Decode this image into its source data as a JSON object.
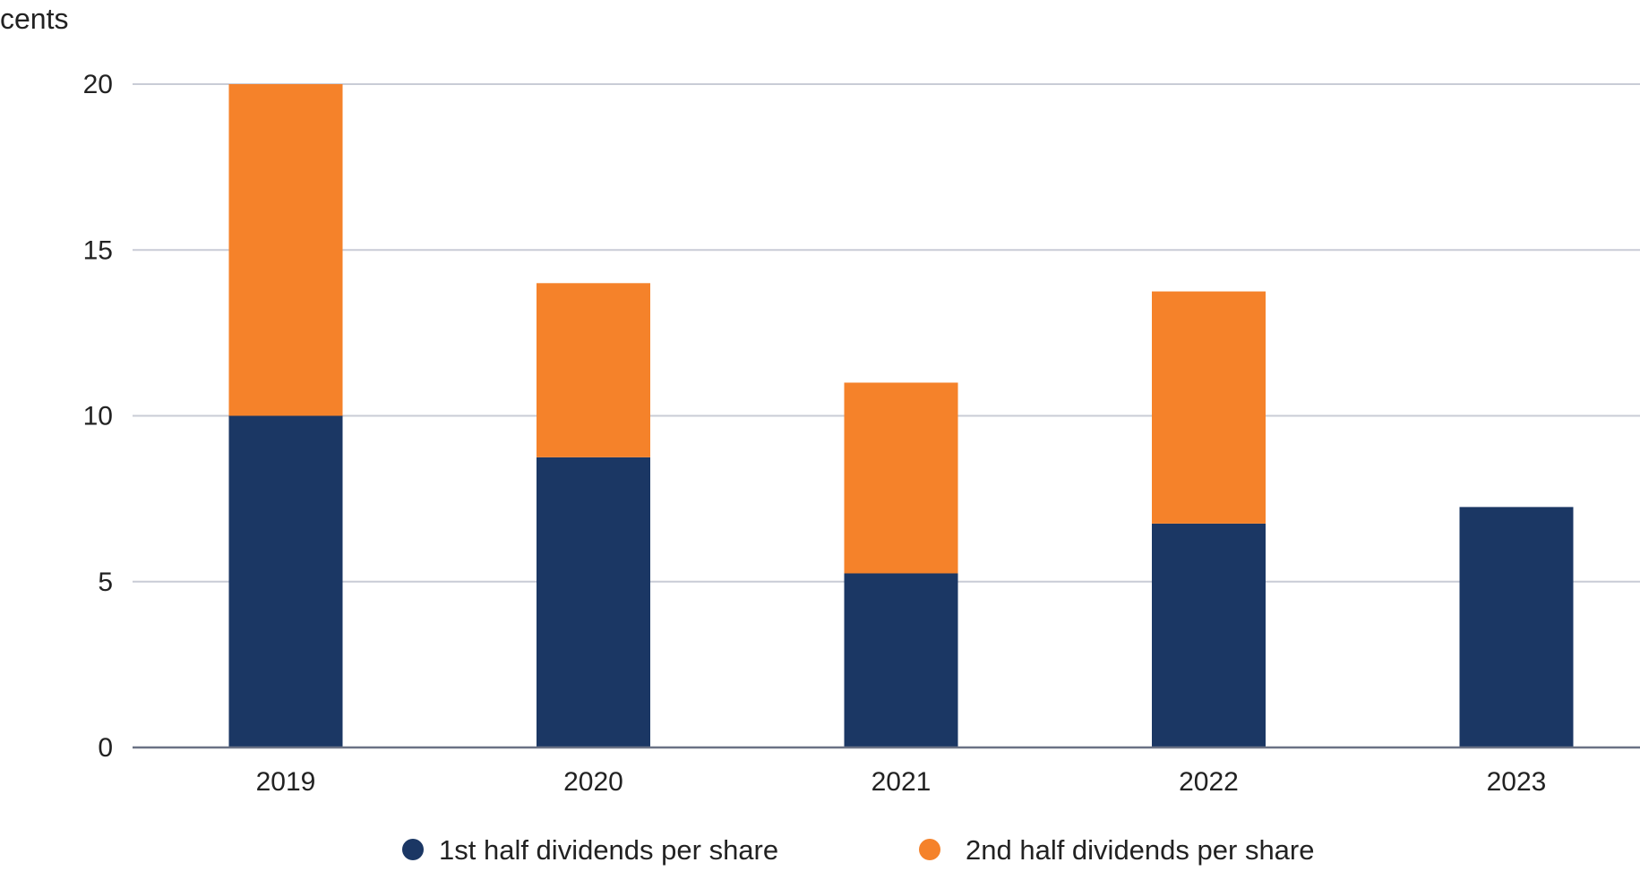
{
  "chart_data": {
    "type": "bar",
    "stacked": true,
    "ylabel": "cents",
    "categories": [
      "2019",
      "2020",
      "2021",
      "2022",
      "2023"
    ],
    "series": [
      {
        "name": "1st half dividends per share",
        "color": "#1b3764",
        "values": [
          10,
          8.75,
          5.25,
          6.75,
          7.25
        ]
      },
      {
        "name": "2nd half dividends per share",
        "color": "#f5822a",
        "values": [
          10,
          5.25,
          5.75,
          7.0,
          null
        ]
      }
    ],
    "ylim": [
      0,
      20
    ],
    "yticks": [
      0,
      5,
      10,
      15,
      20
    ],
    "grid": true,
    "legend_position": "bottom-center",
    "colors": {
      "grid": "#c9ccd6",
      "axis": "#6b7285",
      "text": "#222222"
    }
  }
}
